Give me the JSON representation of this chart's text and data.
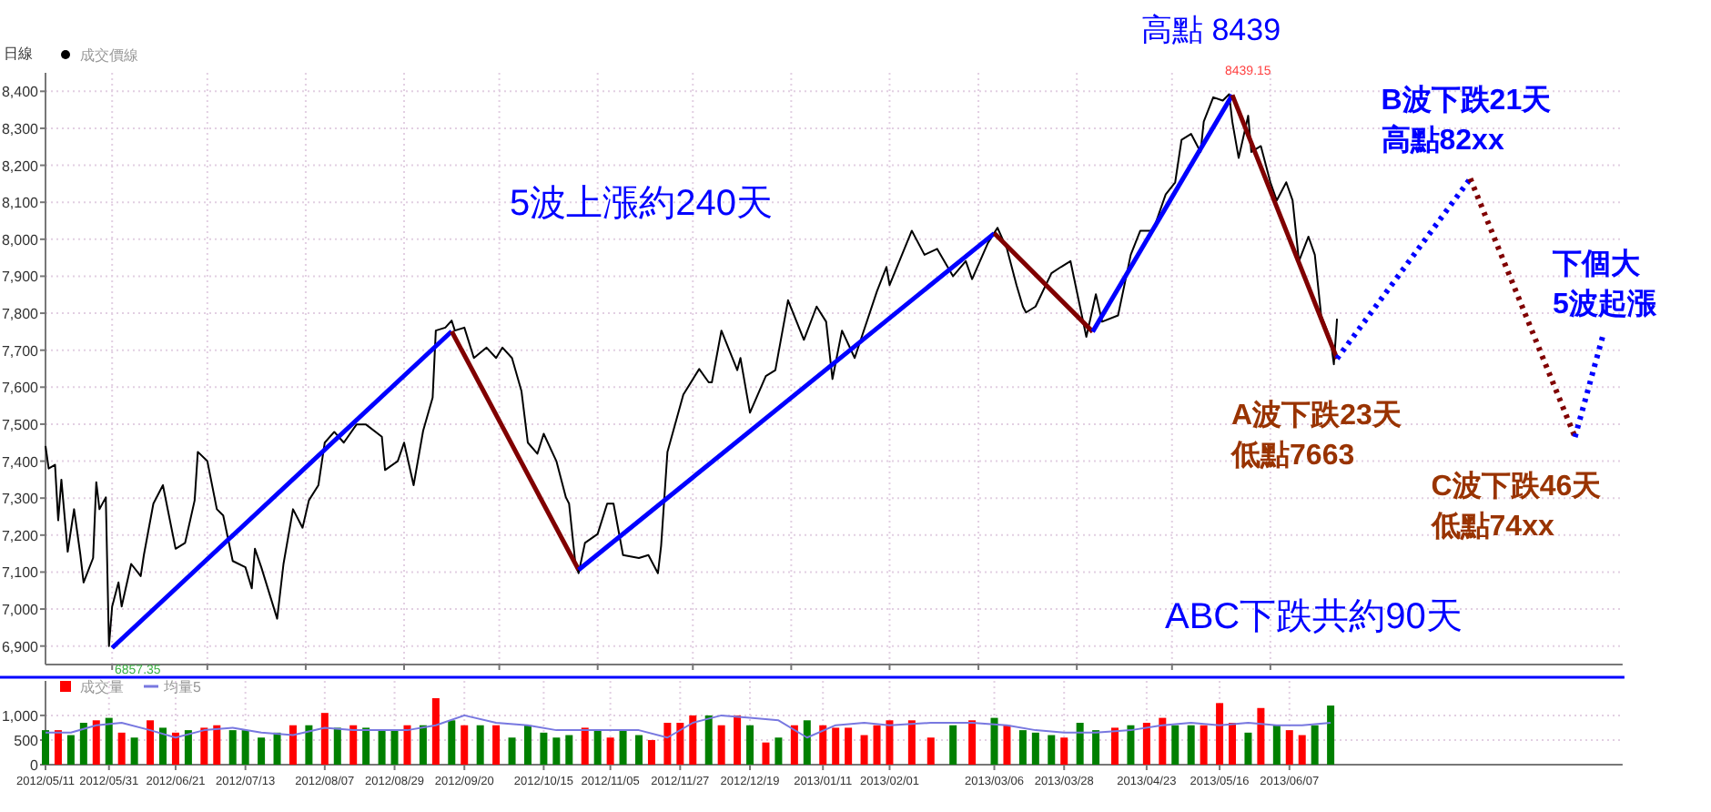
{
  "chart_data": [
    {
      "type": "line",
      "ylabel": "日線",
      "legend": "top left",
      "grid": true,
      "tick_labels": "y",
      "xlim": [
        "2012-05-11",
        "2013-09-20"
      ],
      "ylim": [
        6850,
        8450
      ],
      "xticks": [
        {
          "value": "2012-06-01",
          "label": null
        },
        {
          "value": "2012-07-01",
          "label": null
        },
        {
          "value": "2012-08-01",
          "label": null
        },
        {
          "value": "2012-09-01",
          "label": null
        },
        {
          "value": "2012-10-01",
          "label": null
        },
        {
          "value": "2012-11-01",
          "label": null
        },
        {
          "value": "2012-12-01",
          "label": null
        },
        {
          "value": "2013-01-01",
          "label": null
        },
        {
          "value": "2013-02-01",
          "label": null
        },
        {
          "value": "2013-03-01",
          "label": null
        },
        {
          "value": "2013-04-01",
          "label": null
        },
        {
          "value": "2013-05-01",
          "label": null
        },
        {
          "value": "2013-06-01",
          "label": null
        }
      ],
      "yticks": [
        {
          "value": 6900,
          "label": "6,900"
        },
        {
          "value": 7000,
          "label": "7,000"
        },
        {
          "value": 7100,
          "label": "7,100"
        },
        {
          "value": 7200,
          "label": "7,200"
        },
        {
          "value": 7300,
          "label": "7,300"
        },
        {
          "value": 7400,
          "label": "7,400"
        },
        {
          "value": 7500,
          "label": "7,500"
        },
        {
          "value": 7600,
          "label": "7,600"
        },
        {
          "value": 7700,
          "label": "7,700"
        },
        {
          "value": 7800,
          "label": "7,800"
        },
        {
          "value": 7900,
          "label": "7,900"
        },
        {
          "value": 8000,
          "label": "8,000"
        },
        {
          "value": 8100,
          "label": "8,100"
        },
        {
          "value": 8200,
          "label": "8,200"
        },
        {
          "value": 8300,
          "label": "8,300"
        },
        {
          "value": 8400,
          "label": "8,400"
        }
      ],
      "series": [
        {
          "name": "成交價線",
          "color": "#000000",
          "x": [
            "2012-05-11",
            "2012-05-12",
            "2012-05-14",
            "2012-05-15",
            "2012-05-16",
            "2012-05-18",
            "2012-05-20",
            "2012-05-22",
            "2012-05-23",
            "2012-05-26",
            "2012-05-27",
            "2012-05-28",
            "2012-05-30",
            "2012-05-31",
            "2012-06-01",
            "2012-06-03",
            "2012-06-04",
            "2012-06-07",
            "2012-06-10",
            "2012-06-11",
            "2012-06-14",
            "2012-06-17",
            "2012-06-21",
            "2012-06-24",
            "2012-06-27",
            "2012-06-28",
            "2012-07-01",
            "2012-07-04",
            "2012-07-06",
            "2012-07-09",
            "2012-07-13",
            "2012-07-15",
            "2012-07-16",
            "2012-07-18",
            "2012-07-23",
            "2012-07-25",
            "2012-07-28",
            "2012-07-31",
            "2012-08-02",
            "2012-08-05",
            "2012-08-07",
            "2012-08-10",
            "2012-08-13",
            "2012-08-17",
            "2012-08-20",
            "2012-08-25",
            "2012-08-26",
            "2012-08-30",
            "2012-09-01",
            "2012-09-04",
            "2012-09-07",
            "2012-09-10",
            "2012-09-11",
            "2012-09-14",
            "2012-09-16",
            "2012-09-17",
            "2012-09-20",
            "2012-09-23",
            "2012-09-27",
            "2012-09-30",
            "2012-10-02",
            "2012-10-05",
            "2012-10-08",
            "2012-10-10",
            "2012-10-13",
            "2012-10-15",
            "2012-10-19",
            "2012-10-22",
            "2012-10-23",
            "2012-10-25",
            "2012-10-26",
            "2012-10-28",
            "2012-11-01",
            "2012-11-04",
            "2012-11-06",
            "2012-11-09",
            "2012-11-14",
            "2012-11-17",
            "2012-11-20",
            "2012-11-21",
            "2012-11-23",
            "2012-11-28",
            "2012-12-03",
            "2012-12-06",
            "2012-12-07",
            "2012-12-10",
            "2012-12-15",
            "2012-12-16",
            "2012-12-19",
            "2012-12-24",
            "2012-12-27",
            "2012-12-31",
            "2013-01-05",
            "2013-01-09",
            "2013-01-12",
            "2013-01-14",
            "2013-01-17",
            "2013-01-21",
            "2013-01-28",
            "2013-01-31",
            "2013-02-01",
            "2013-02-08",
            "2013-02-12",
            "2013-02-16",
            "2013-02-21",
            "2013-02-25",
            "2013-02-27",
            "2013-03-04",
            "2013-03-07",
            "2013-03-10",
            "2013-03-13",
            "2013-03-15",
            "2013-03-16",
            "2013-03-19",
            "2013-03-24",
            "2013-03-27",
            "2013-03-30",
            "2013-04-02",
            "2013-04-04",
            "2013-04-07",
            "2013-04-09",
            "2013-04-14",
            "2013-04-18",
            "2013-04-21",
            "2013-04-25",
            "2013-04-29",
            "2013-05-02",
            "2013-05-04",
            "2013-05-07",
            "2013-05-10",
            "2013-05-11",
            "2013-05-14",
            "2013-05-17",
            "2013-05-19",
            "2013-05-20",
            "2013-05-22",
            "2013-05-25",
            "2013-05-26",
            "2013-05-29",
            "2013-06-01",
            "2013-06-03",
            "2013-06-06",
            "2013-06-08",
            "2013-06-10",
            "2013-06-13",
            "2013-06-15",
            "2013-06-17",
            "2013-06-20",
            "2013-06-21",
            "2013-06-22"
          ],
          "values": [
            7441,
            7380,
            7390,
            7240,
            7350,
            7155,
            7270,
            7146,
            7072,
            7138,
            7343,
            7270,
            7302,
            6900,
            7007,
            7072,
            7007,
            7122,
            7089,
            7146,
            7285,
            7335,
            7163,
            7179,
            7294,
            7425,
            7400,
            7270,
            7253,
            7130,
            7113,
            7056,
            7163,
            7113,
            6974,
            7122,
            7270,
            7220,
            7294,
            7335,
            7450,
            7479,
            7450,
            7499,
            7499,
            7466,
            7376,
            7400,
            7450,
            7335,
            7482,
            7572,
            7753,
            7761,
            7780,
            7753,
            7761,
            7679,
            7707,
            7679,
            7707,
            7679,
            7589,
            7450,
            7420,
            7474,
            7400,
            7302,
            7285,
            7122,
            7097,
            7179,
            7203,
            7285,
            7285,
            7146,
            7138,
            7146,
            7097,
            7171,
            7425,
            7580,
            7649,
            7613,
            7613,
            7753,
            7646,
            7679,
            7531,
            7630,
            7646,
            7835,
            7728,
            7818,
            7777,
            7622,
            7753,
            7679,
            7859,
            7925,
            7876,
            8023,
            7958,
            7974,
            7900,
            7941,
            7892,
            7990,
            8031,
            7974,
            7876,
            7818,
            7802,
            7818,
            7908,
            7925,
            7941,
            7818,
            7736,
            7851,
            7777,
            7794,
            7958,
            8023,
            8023,
            8121,
            8154,
            8269,
            8285,
            8236,
            8318,
            8384,
            8375,
            8392,
            8318,
            8220,
            8334,
            8236,
            8252,
            8154,
            8105,
            8154,
            8105,
            7941,
            8007,
            7958,
            7794,
            7728,
            7662,
            7785
          ]
        },
        {
          "color": "#0000ff",
          "line_style": "solid",
          "x": [
            "2012-06-01",
            "2012-09-16"
          ],
          "values": [
            6895,
            7751
          ]
        },
        {
          "color": "#800000",
          "line_style": "solid",
          "x": [
            "2012-09-16",
            "2012-10-26"
          ],
          "values": [
            7751,
            7106
          ]
        },
        {
          "color": "#0000ff",
          "line_style": "solid",
          "x": [
            "2012-10-26",
            "2013-03-06"
          ],
          "values": [
            7106,
            8016
          ]
        },
        {
          "color": "#800000",
          "line_style": "solid",
          "x": [
            "2013-03-06",
            "2013-04-06"
          ],
          "values": [
            8016,
            7750
          ]
        },
        {
          "color": "#0000ff",
          "line_style": "solid",
          "x": [
            "2013-04-06",
            "2013-05-20"
          ],
          "values": [
            7750,
            8390
          ]
        },
        {
          "color": "#800000",
          "line_style": "solid",
          "x": [
            "2013-05-20",
            "2013-06-22"
          ],
          "values": [
            8390,
            7677
          ]
        },
        {
          "color": "#0000ff",
          "line_style": "dotted",
          "x": [
            "2013-06-22",
            "2013-08-03"
          ],
          "values": [
            7677,
            8164
          ]
        },
        {
          "color": "#800000",
          "line_style": "dotted",
          "x": [
            "2013-08-03",
            "2013-09-05"
          ],
          "values": [
            8164,
            7465
          ]
        },
        {
          "color": "#0000ff",
          "line_style": "dotted",
          "x": [
            "2013-09-05",
            "2013-09-14"
          ],
          "values": [
            7465,
            7746
          ]
        }
      ],
      "annotations": [
        "5波上漲約240天",
        {
          "text": "高點 8439",
          "x": "2013-05-20",
          "y": 8390
        },
        {
          "text": "A波下跌23天",
          "x": "2013-06-22",
          "y": 7677
        },
        {
          "text": "低點7663",
          "x": "2013-06-22",
          "y": 7677
        },
        {
          "text": "B波下跌21天",
          "x": "2013-08-03",
          "y": 8164
        },
        {
          "text": "高點82xx",
          "x": "2013-08-03",
          "y": 8164
        },
        {
          "text": "C波下跌46天",
          "x": "2013-09-05",
          "y": 7465
        },
        {
          "text": "低點74xx",
          "x": "2013-09-05",
          "y": 7465
        },
        {
          "text": "下個大",
          "x": "2013-09-14",
          "y": 7746
        },
        {
          "text": "5波起漲",
          "x": "2013-09-14",
          "y": 7746
        },
        "ABC下跌共約90天",
        "6857.35",
        "8439.15"
      ]
    },
    {
      "type": "bar",
      "legend": "top left",
      "grid": true,
      "xlim": [
        "2012-05-11",
        "2013-09-20"
      ],
      "ylim": [
        0,
        1700
      ],
      "xticks": [
        {
          "value": "2012-05-11",
          "label": "2012/05/11"
        },
        {
          "value": "2012-05-31",
          "label": "2012/05/31"
        },
        {
          "value": "2012-06-21",
          "label": "2012/06/21"
        },
        {
          "value": "2012-07-13",
          "label": "2012/07/13"
        },
        {
          "value": "2012-08-07",
          "label": "2012/08/07"
        },
        {
          "value": "2012-08-29",
          "label": "2012/08/29"
        },
        {
          "value": "2012-09-20",
          "label": "2012/09/20"
        },
        {
          "value": "2012-10-15",
          "label": "2012/10/15"
        },
        {
          "value": "2012-11-05",
          "label": "2012/11/05"
        },
        {
          "value": "2012-11-27",
          "label": "2012/11/27"
        },
        {
          "value": "2012-12-19",
          "label": "2012/12/19"
        },
        {
          "value": "2013-01-11",
          "label": "2013/01/11"
        },
        {
          "value": "2013-02-01",
          "label": "2013/02/01"
        },
        {
          "value": "2013-03-06",
          "label": "2013/03/06"
        },
        {
          "value": "2013-03-28",
          "label": "2013/03/28"
        },
        {
          "value": "2013-04-23",
          "label": "2013/04/23"
        },
        {
          "value": "2013-05-16",
          "label": "2013/05/16"
        },
        {
          "value": "2013-06-07",
          "label": "2013/06/07"
        }
      ],
      "yticks": [
        0,
        500,
        {
          "value": 1000,
          "label": "1,000"
        }
      ],
      "series": [
        {
          "name": "成交量",
          "color": "#ff0000",
          "x": [
            "2012-05-11",
            "2012-05-15",
            "2012-05-19",
            "2012-05-23",
            "2012-05-27",
            "2012-05-31",
            "2012-06-04",
            "2012-06-08",
            "2012-06-13",
            "2012-06-17",
            "2012-06-21",
            "2012-06-25",
            "2012-06-30",
            "2012-07-04",
            "2012-07-09",
            "2012-07-13",
            "2012-07-18",
            "2012-07-23",
            "2012-07-28",
            "2012-08-02",
            "2012-08-07",
            "2012-08-11",
            "2012-08-16",
            "2012-08-20",
            "2012-08-25",
            "2012-08-29",
            "2012-09-02",
            "2012-09-07",
            "2012-09-11",
            "2012-09-16",
            "2012-09-20",
            "2012-09-25",
            "2012-09-30",
            "2012-10-05",
            "2012-10-10",
            "2012-10-15",
            "2012-10-19",
            "2012-10-23",
            "2012-10-28",
            "2012-11-01",
            "2012-11-05",
            "2012-11-09",
            "2012-11-14",
            "2012-11-18",
            "2012-11-23",
            "2012-11-27",
            "2012-12-01",
            "2012-12-06",
            "2012-12-10",
            "2012-12-15",
            "2012-12-19",
            "2012-12-24",
            "2012-12-28",
            "2013-01-02",
            "2013-01-06",
            "2013-01-11",
            "2013-01-15",
            "2013-01-19",
            "2013-01-24",
            "2013-01-28",
            "2013-02-01",
            "2013-02-08",
            "2013-02-14",
            "2013-02-21",
            "2013-02-27",
            "2013-03-06",
            "2013-03-10",
            "2013-03-15",
            "2013-03-19",
            "2013-03-24",
            "2013-03-28",
            "2013-04-02",
            "2013-04-07",
            "2013-04-13",
            "2013-04-18",
            "2013-04-23",
            "2013-04-28",
            "2013-05-02",
            "2013-05-07",
            "2013-05-11",
            "2013-05-16",
            "2013-05-20",
            "2013-05-25",
            "2013-05-29",
            "2013-06-03",
            "2013-06-07",
            "2013-06-11",
            "2013-06-15",
            "2013-06-20"
          ],
          "values": [
            700,
            700,
            600,
            850,
            900,
            950,
            650,
            550,
            900,
            750,
            650,
            700,
            750,
            800,
            700,
            700,
            550,
            650,
            800,
            800,
            1050,
            750,
            800,
            750,
            700,
            700,
            800,
            800,
            1350,
            900,
            800,
            800,
            800,
            550,
            800,
            650,
            550,
            600,
            750,
            700,
            550,
            700,
            600,
            500,
            850,
            850,
            1000,
            1000,
            800,
            1000,
            800,
            450,
            550,
            800,
            900,
            800,
            750,
            750,
            600,
            800,
            900,
            900,
            550,
            800,
            900,
            950,
            800,
            700,
            650,
            600,
            550,
            850,
            700,
            750,
            800,
            850,
            950,
            800,
            800,
            800,
            1250,
            850,
            650,
            1150,
            800,
            700,
            600,
            800,
            1200
          ],
          "colors": [
            "#008000",
            "#ff0000",
            "#008000",
            "#008000",
            "#ff0000",
            "#008000",
            "#ff0000",
            "#008000",
            "#ff0000",
            "#008000",
            "#ff0000",
            "#008000",
            "#ff0000",
            "#ff0000",
            "#008000",
            "#008000",
            "#008000",
            "#008000",
            "#ff0000",
            "#008000",
            "#ff0000",
            "#008000",
            "#ff0000",
            "#008000",
            "#008000",
            "#008000",
            "#ff0000",
            "#008000",
            "#ff0000",
            "#008000",
            "#ff0000",
            "#008000",
            "#ff0000",
            "#008000",
            "#008000",
            "#008000",
            "#008000",
            "#008000",
            "#ff0000",
            "#008000",
            "#ff0000",
            "#008000",
            "#008000",
            "#ff0000",
            "#ff0000",
            "#ff0000",
            "#ff0000",
            "#008000",
            "#ff0000",
            "#ff0000",
            "#008000",
            "#ff0000",
            "#008000",
            "#ff0000",
            "#008000",
            "#ff0000",
            "#ff0000",
            "#ff0000",
            "#ff0000",
            "#ff0000",
            "#ff0000",
            "#ff0000",
            "#ff0000",
            "#008000",
            "#ff0000",
            "#008000",
            "#ff0000",
            "#008000",
            "#008000",
            "#008000",
            "#ff0000",
            "#008000",
            "#008000",
            "#ff0000",
            "#008000",
            "#ff0000",
            "#ff0000",
            "#008000",
            "#008000",
            "#ff0000",
            "#ff0000",
            "#ff0000",
            "#008000",
            "#ff0000",
            "#008000",
            "#ff0000",
            "#ff0000",
            "#008000",
            "#008000"
          ]
        },
        {
          "name": "均量5",
          "type": "line",
          "color": "#7878e0",
          "x": [
            "2012-05-11",
            "2012-05-19",
            "2012-05-27",
            "2012-06-04",
            "2012-06-13",
            "2012-06-21",
            "2012-06-30",
            "2012-07-09",
            "2012-07-18",
            "2012-07-28",
            "2012-08-07",
            "2012-08-16",
            "2012-08-25",
            "2012-09-02",
            "2012-09-11",
            "2012-09-20",
            "2012-09-30",
            "2012-10-10",
            "2012-10-19",
            "2012-10-28",
            "2012-11-05",
            "2012-11-14",
            "2012-11-23",
            "2012-12-01",
            "2012-12-10",
            "2012-12-19",
            "2012-12-28",
            "2013-01-06",
            "2013-01-15",
            "2013-01-24",
            "2013-02-01",
            "2013-02-14",
            "2013-02-27",
            "2013-03-10",
            "2013-03-19",
            "2013-03-28",
            "2013-04-07",
            "2013-04-18",
            "2013-04-28",
            "2013-05-07",
            "2013-05-16",
            "2013-05-25",
            "2013-06-03",
            "2013-06-11",
            "2013-06-20"
          ],
          "values": [
            650,
            650,
            800,
            850,
            700,
            550,
            700,
            750,
            650,
            600,
            750,
            700,
            700,
            700,
            800,
            1000,
            850,
            800,
            700,
            700,
            700,
            700,
            550,
            850,
            1000,
            950,
            900,
            550,
            800,
            850,
            800,
            850,
            850,
            800,
            700,
            650,
            650,
            700,
            800,
            850,
            800,
            850,
            800,
            800,
            850
          ]
        }
      ]
    }
  ]
}
